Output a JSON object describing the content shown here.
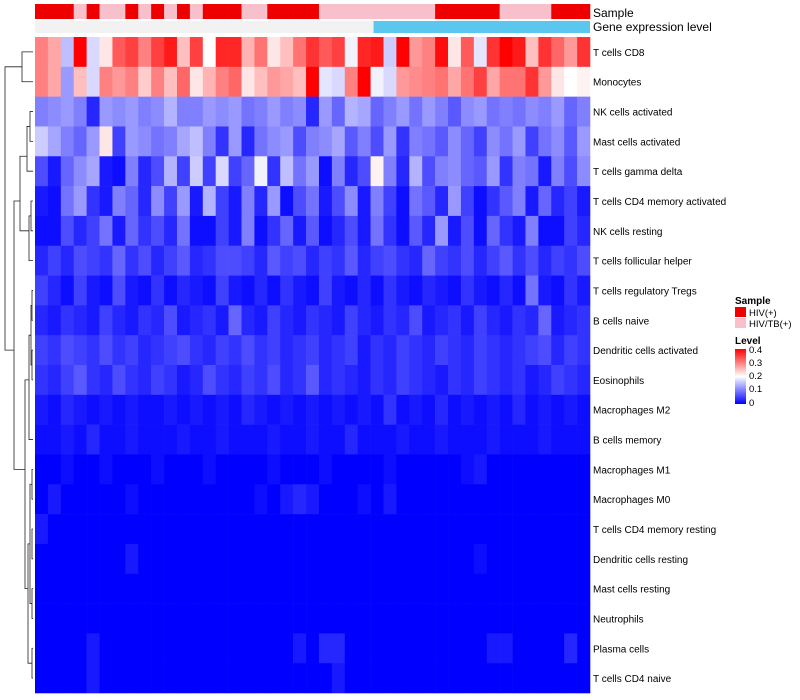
{
  "chart_data": {
    "type": "heatmap",
    "title": "",
    "annotation_rows": [
      {
        "name": "Sample",
        "label": "Sample"
      },
      {
        "name": "Gene expression level",
        "label": "Gene expression level"
      }
    ],
    "annotation_colors": {
      "gene_expression_bar": "#5bc6ee"
    },
    "rows": [
      "T cells CD8",
      "Monocytes",
      "NK cells activated",
      "Mast cells activated",
      "T cells gamma delta",
      "T cells CD4 memory activated",
      "NK cells resting",
      "T cells follicular helper",
      "T cells regulatory  Tregs",
      "B cells naive",
      "Dendritic cells activated",
      "Eosinophils",
      "Macrophages M2",
      "B cells memory",
      "Macrophages M1",
      "Macrophages M0",
      "T cells CD4 memory resting",
      "Dendritic cells resting",
      "Mast cells resting",
      "Neutrophils",
      "Plasma cells",
      "T cells CD4 naive"
    ],
    "sample_groups": [
      "HIV(+)",
      "HIV(+)",
      "HIV(+)",
      "HIV/TB(+)",
      "HIV(+)",
      "HIV/TB(+)",
      "HIV/TB(+)",
      "HIV(+)",
      "HIV/TB(+)",
      "HIV(+)",
      "HIV/TB(+)",
      "HIV(+)",
      "HIV/TB(+)",
      "HIV(+)",
      "HIV(+)",
      "HIV(+)",
      "HIV/TB(+)",
      "HIV/TB(+)",
      "HIV(+)",
      "HIV(+)",
      "HIV(+)",
      "HIV(+)",
      "HIV/TB(+)",
      "HIV/TB(+)",
      "HIV/TB(+)",
      "HIV/TB(+)",
      "HIV/TB(+)",
      "HIV/TB(+)",
      "HIV/TB(+)",
      "HIV/TB(+)",
      "HIV/TB(+)",
      "HIV(+)",
      "HIV(+)",
      "HIV(+)",
      "HIV(+)",
      "HIV(+)",
      "HIV/TB(+)",
      "HIV/TB(+)",
      "HIV/TB(+)",
      "HIV/TB(+)",
      "HIV(+)",
      "HIV(+)",
      "HIV(+)"
    ],
    "values": [
      [
        0.3,
        0.27,
        0.15,
        0.4,
        0.17,
        0.22,
        0.33,
        0.35,
        0.3,
        0.35,
        0.38,
        0.25,
        0.35,
        0.2,
        0.37,
        0.37,
        0.26,
        0.31,
        0.22,
        0.25,
        0.31,
        0.36,
        0.33,
        0.35,
        0.19,
        0.37,
        0.38,
        0.16,
        0.4,
        0.28,
        0.3,
        0.39,
        0.22,
        0.33,
        0.18,
        0.36,
        0.41,
        0.38,
        0.25,
        0.36,
        0.32,
        0.28,
        0.36
      ],
      [
        0.3,
        0.27,
        0.12,
        0.25,
        0.17,
        0.3,
        0.28,
        0.3,
        0.24,
        0.3,
        0.25,
        0.32,
        0.22,
        0.26,
        0.3,
        0.32,
        0.22,
        0.25,
        0.28,
        0.27,
        0.25,
        0.42,
        0.18,
        0.17,
        0.3,
        0.4,
        0.19,
        0.17,
        0.28,
        0.29,
        0.3,
        0.31,
        0.27,
        0.31,
        0.35,
        0.27,
        0.31,
        0.31,
        0.36,
        0.28,
        0.22,
        0.2,
        0.21
      ],
      [
        0.1,
        0.11,
        0.12,
        0.1,
        0.03,
        0.12,
        0.11,
        0.12,
        0.1,
        0.11,
        0.14,
        0.1,
        0.1,
        0.12,
        0.11,
        0.12,
        0.09,
        0.1,
        0.12,
        0.1,
        0.11,
        0.03,
        0.12,
        0.08,
        0.14,
        0.13,
        0.08,
        0.1,
        0.12,
        0.09,
        0.12,
        0.1,
        0.07,
        0.11,
        0.12,
        0.09,
        0.1,
        0.09,
        0.11,
        0.1,
        0.12,
        0.08,
        0.1
      ],
      [
        0.16,
        0.13,
        0.1,
        0.08,
        0.12,
        0.22,
        0.05,
        0.12,
        0.11,
        0.09,
        0.1,
        0.13,
        0.15,
        0.1,
        0.04,
        0.12,
        0.03,
        0.09,
        0.11,
        0.12,
        0.06,
        0.1,
        0.11,
        0.13,
        0.07,
        0.1,
        0.06,
        0.12,
        0.04,
        0.1,
        0.09,
        0.07,
        0.11,
        0.08,
        0.05,
        0.11,
        0.09,
        0.12,
        0.05,
        0.09,
        0.11,
        0.07,
        0.12
      ],
      [
        0.06,
        0.02,
        0.08,
        0.11,
        0.13,
        0.02,
        0.01,
        0.1,
        0.03,
        0.06,
        0.14,
        0.05,
        0.16,
        0.05,
        0.17,
        0.05,
        0.08,
        0.19,
        0.04,
        0.15,
        0.09,
        0.12,
        0.01,
        0.1,
        0.03,
        0.06,
        0.21,
        0.1,
        0.03,
        0.14,
        0.06,
        0.1,
        0.11,
        0.08,
        0.07,
        0.12,
        0.04,
        0.1,
        0.09,
        0.02,
        0.1,
        0.06,
        0.11
      ],
      [
        0.02,
        0.01,
        0.09,
        0.12,
        0.04,
        0.02,
        0.1,
        0.08,
        0.03,
        0.11,
        0.05,
        0.12,
        0.02,
        0.14,
        0.05,
        0.02,
        0.1,
        0.03,
        0.12,
        0.01,
        0.06,
        0.09,
        0.02,
        0.06,
        0.11,
        0.02,
        0.1,
        0.05,
        0.01,
        0.09,
        0.07,
        0.03,
        0.12,
        0.05,
        0.01,
        0.04,
        0.07,
        0.1,
        0.02,
        0.08,
        0.03,
        0.05,
        0.02
      ],
      [
        0.01,
        0.01,
        0.06,
        0.03,
        0.05,
        0.09,
        0.02,
        0.08,
        0.04,
        0.06,
        0.03,
        0.09,
        0.01,
        0.01,
        0.05,
        0.02,
        0.1,
        0.01,
        0.04,
        0.08,
        0.02,
        0.07,
        0.01,
        0.03,
        0.06,
        0.02,
        0.09,
        0.04,
        0.01,
        0.07,
        0.03,
        0.12,
        0.02,
        0.06,
        0.01,
        0.08,
        0.04,
        0.02,
        0.1,
        0.01,
        0.01,
        0.05,
        0.03
      ],
      [
        0.03,
        0.05,
        0.03,
        0.06,
        0.05,
        0.04,
        0.08,
        0.04,
        0.06,
        0.03,
        0.05,
        0.07,
        0.03,
        0.04,
        0.06,
        0.06,
        0.05,
        0.03,
        0.07,
        0.05,
        0.06,
        0.03,
        0.05,
        0.04,
        0.07,
        0.03,
        0.05,
        0.06,
        0.04,
        0.03,
        0.08,
        0.05,
        0.04,
        0.06,
        0.03,
        0.05,
        0.07,
        0.04,
        0.06,
        0.03,
        0.05,
        0.04,
        0.06
      ],
      [
        0.05,
        0.03,
        0.01,
        0.05,
        0.02,
        0.01,
        0.06,
        0.02,
        0.01,
        0.04,
        0.01,
        0.03,
        0.02,
        0.01,
        0.05,
        0.02,
        0.01,
        0.03,
        0.01,
        0.04,
        0.02,
        0.01,
        0.05,
        0.02,
        0.01,
        0.03,
        0.01,
        0.04,
        0.02,
        0.01,
        0.03,
        0.02,
        0.01,
        0.04,
        0.02,
        0.01,
        0.03,
        0.01,
        0.09,
        0.02,
        0.01,
        0.04,
        0.02
      ],
      [
        0.03,
        0.02,
        0.04,
        0.03,
        0.02,
        0.05,
        0.03,
        0.02,
        0.04,
        0.03,
        0.06,
        0.02,
        0.03,
        0.04,
        0.02,
        0.08,
        0.03,
        0.02,
        0.05,
        0.03,
        0.02,
        0.04,
        0.03,
        0.02,
        0.05,
        0.03,
        0.02,
        0.04,
        0.03,
        0.06,
        0.02,
        0.03,
        0.04,
        0.02,
        0.05,
        0.03,
        0.02,
        0.04,
        0.03,
        0.08,
        0.02,
        0.03,
        0.04
      ],
      [
        0.05,
        0.04,
        0.06,
        0.05,
        0.04,
        0.06,
        0.04,
        0.05,
        0.03,
        0.04,
        0.05,
        0.06,
        0.04,
        0.03,
        0.05,
        0.04,
        0.06,
        0.04,
        0.05,
        0.03,
        0.04,
        0.05,
        0.03,
        0.04,
        0.05,
        0.02,
        0.04,
        0.03,
        0.05,
        0.04,
        0.03,
        0.05,
        0.04,
        0.03,
        0.05,
        0.04,
        0.03,
        0.04,
        0.05,
        0.06,
        0.03,
        0.05,
        0.04
      ],
      [
        0.04,
        0.03,
        0.05,
        0.07,
        0.04,
        0.03,
        0.06,
        0.04,
        0.03,
        0.05,
        0.04,
        0.02,
        0.03,
        0.06,
        0.04,
        0.03,
        0.05,
        0.04,
        0.06,
        0.03,
        0.04,
        0.07,
        0.03,
        0.04,
        0.03,
        0.02,
        0.04,
        0.03,
        0.05,
        0.04,
        0.03,
        0.02,
        0.04,
        0.03,
        0.05,
        0.04,
        0.03,
        0.04,
        0.02,
        0.03,
        0.05,
        0.04,
        0.03
      ],
      [
        0.02,
        0.01,
        0.03,
        0.02,
        0.01,
        0.02,
        0.01,
        0.02,
        0.01,
        0.01,
        0.02,
        0.01,
        0.02,
        0.01,
        0.02,
        0.01,
        0.03,
        0.02,
        0.01,
        0.02,
        0.01,
        0.02,
        0.01,
        0.02,
        0.01,
        0.02,
        0.01,
        0.04,
        0.01,
        0.02,
        0.01,
        0.03,
        0.01,
        0.02,
        0.01,
        0.02,
        0.01,
        0.03,
        0.01,
        0.02,
        0.01,
        0.02,
        0.01
      ],
      [
        0.01,
        0.01,
        0.02,
        0.01,
        0.03,
        0.01,
        0.01,
        0.02,
        0.01,
        0.01,
        0.01,
        0.02,
        0.01,
        0.01,
        0.02,
        0.01,
        0.01,
        0.01,
        0.02,
        0.01,
        0.01,
        0.02,
        0.01,
        0.01,
        0.03,
        0.01,
        0.01,
        0.01,
        0.02,
        0.01,
        0.01,
        0.02,
        0.01,
        0.01,
        0.01,
        0.02,
        0.01,
        0.01,
        0.01,
        0.02,
        0.01,
        0.01,
        0.01
      ],
      [
        0.0,
        0.0,
        0.01,
        0.0,
        0.0,
        0.01,
        0.0,
        0.0,
        0.0,
        0.01,
        0.0,
        0.0,
        0.0,
        0.01,
        0.0,
        0.0,
        0.0,
        0.0,
        0.01,
        0.0,
        0.0,
        0.0,
        0.01,
        0.0,
        0.0,
        0.0,
        0.0,
        0.01,
        0.0,
        0.0,
        0.0,
        0.0,
        0.0,
        0.01,
        0.02,
        0.0,
        0.0,
        0.0,
        0.0,
        0.0,
        0.0,
        0.0,
        0.0
      ],
      [
        0.0,
        0.02,
        0.0,
        0.0,
        0.0,
        0.0,
        0.0,
        0.01,
        0.0,
        0.0,
        0.0,
        0.0,
        0.0,
        0.0,
        0.0,
        0.0,
        0.0,
        0.01,
        0.0,
        0.02,
        0.03,
        0.02,
        0.0,
        0.0,
        0.0,
        0.01,
        0.0,
        0.02,
        0.0,
        0.0,
        0.0,
        0.0,
        0.0,
        0.0,
        0.0,
        0.0,
        0.0,
        0.0,
        0.0,
        0.0,
        0.0,
        0.0,
        0.0
      ],
      [
        0.02,
        0.0,
        0.0,
        0.0,
        0.0,
        0.0,
        0.0,
        0.0,
        0.0,
        0.0,
        0.0,
        0.0,
        0.0,
        0.0,
        0.0,
        0.0,
        0.0,
        0.0,
        0.0,
        0.0,
        0.0,
        0.0,
        0.0,
        0.0,
        0.0,
        0.0,
        0.0,
        0.0,
        0.0,
        0.0,
        0.0,
        0.0,
        0.0,
        0.0,
        0.0,
        0.0,
        0.0,
        0.0,
        0.0,
        0.0,
        0.0,
        0.0,
        0.0
      ],
      [
        0.0,
        0.0,
        0.0,
        0.0,
        0.0,
        0.0,
        0.0,
        0.02,
        0.0,
        0.0,
        0.0,
        0.0,
        0.0,
        0.0,
        0.0,
        0.0,
        0.0,
        0.0,
        0.0,
        0.0,
        0.0,
        0.0,
        0.0,
        0.0,
        0.0,
        0.0,
        0.0,
        0.0,
        0.0,
        0.0,
        0.0,
        0.0,
        0.0,
        0.0,
        0.01,
        0.0,
        0.0,
        0.0,
        0.0,
        0.0,
        0.0,
        0.0,
        0.0
      ],
      [
        0.0,
        0.0,
        0.0,
        0.0,
        0.0,
        0.0,
        0.0,
        0.0,
        0.0,
        0.0,
        0.0,
        0.0,
        0.0,
        0.0,
        0.0,
        0.0,
        0.0,
        0.0,
        0.0,
        0.0,
        0.0,
        0.0,
        0.0,
        0.0,
        0.0,
        0.0,
        0.0,
        0.0,
        0.0,
        0.0,
        0.0,
        0.0,
        0.0,
        0.0,
        0.0,
        0.0,
        0.0,
        0.0,
        0.0,
        0.0,
        0.0,
        0.0,
        0.0
      ],
      [
        0.0,
        0.0,
        0.0,
        0.0,
        0.0,
        0.0,
        0.0,
        0.0,
        0.0,
        0.0,
        0.0,
        0.0,
        0.0,
        0.0,
        0.0,
        0.0,
        0.0,
        0.0,
        0.0,
        0.0,
        0.0,
        0.0,
        0.0,
        0.0,
        0.0,
        0.0,
        0.0,
        0.0,
        0.0,
        0.0,
        0.0,
        0.0,
        0.0,
        0.0,
        0.0,
        0.0,
        0.0,
        0.0,
        0.0,
        0.0,
        0.0,
        0.0,
        0.0
      ],
      [
        0.0,
        0.0,
        0.0,
        0.0,
        0.02,
        0.0,
        0.0,
        0.0,
        0.0,
        0.0,
        0.0,
        0.0,
        0.0,
        0.0,
        0.0,
        0.0,
        0.0,
        0.0,
        0.0,
        0.0,
        0.02,
        0.0,
        0.03,
        0.03,
        0.0,
        0.0,
        0.0,
        0.0,
        0.0,
        0.0,
        0.0,
        0.0,
        0.0,
        0.0,
        0.0,
        0.02,
        0.02,
        0.0,
        0.0,
        0.0,
        0.0,
        0.03,
        0.0
      ],
      [
        0.0,
        0.0,
        0.0,
        0.0,
        0.02,
        0.0,
        0.0,
        0.0,
        0.0,
        0.0,
        0.0,
        0.0,
        0.0,
        0.0,
        0.0,
        0.0,
        0.0,
        0.0,
        0.0,
        0.0,
        0.0,
        0.0,
        0.0,
        0.02,
        0.0,
        0.0,
        0.0,
        0.0,
        0.0,
        0.0,
        0.0,
        0.0,
        0.0,
        0.0,
        0.0,
        0.0,
        0.0,
        0.0,
        0.0,
        0.0,
        0.0,
        0.0,
        0.0
      ]
    ],
    "legend_sample": {
      "title": "Sample",
      "items": [
        {
          "label": "HIV(+)",
          "color": "#ee0000"
        },
        {
          "label": "HIV/TB(+)",
          "color": "#f8c0cb"
        }
      ]
    },
    "legend_level": {
      "title": "Level",
      "ticks": [
        "0.4",
        "0.3",
        "0.2",
        "0.1",
        "0"
      ],
      "range": [
        0,
        0.4
      ],
      "colors": {
        "low": "#0000ff",
        "mid": "#ffffff",
        "high": "#ff0000"
      }
    }
  }
}
